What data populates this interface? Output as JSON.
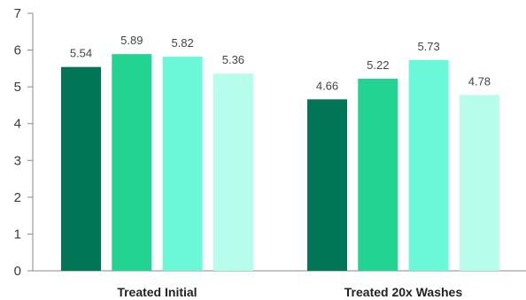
{
  "chart_data": {
    "type": "bar",
    "categories": [
      "Treated Initial",
      "Treated 20x Washes"
    ],
    "series": [
      {
        "values": [
          5.54,
          4.66
        ],
        "color": "#007656"
      },
      {
        "values": [
          5.89,
          5.22
        ],
        "color": "#22d392"
      },
      {
        "values": [
          5.82,
          5.73
        ],
        "color": "#6bf8d8"
      },
      {
        "values": [
          5.36,
          4.78
        ],
        "color": "#b6fdec"
      }
    ],
    "data_labels": [
      [
        "5.54",
        "5.89",
        "5.82",
        "5.36"
      ],
      [
        "4.66",
        "5.22",
        "5.73",
        "4.78"
      ]
    ],
    "ylim": [
      0,
      7
    ],
    "yticks": [
      0,
      1,
      2,
      3,
      4,
      5,
      6,
      7
    ],
    "title": "",
    "xlabel": "",
    "ylabel": "",
    "grid": false,
    "legend": "none"
  }
}
